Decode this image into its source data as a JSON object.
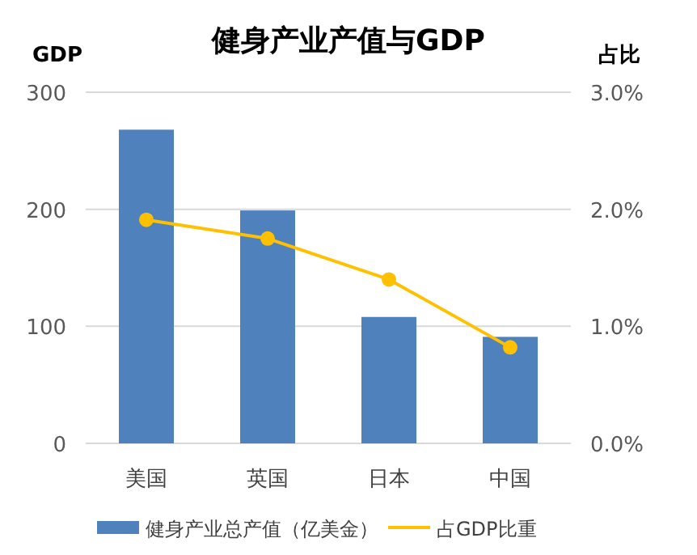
{
  "chart_data": {
    "type": "bar",
    "title": "健身产业产值与GDP",
    "ylabel": "GDP",
    "y2label": "占比",
    "categories": [
      "美国",
      "英国",
      "日本",
      "中国"
    ],
    "series": [
      {
        "name": "健身产业总产值（亿美金）",
        "color": "#4f81bd",
        "values": [
          268,
          199,
          108,
          91
        ]
      },
      {
        "name": "占GDP比重",
        "type": "line",
        "axis": "y2",
        "color": "#ffc000",
        "marker": "circle",
        "values": [
          1.91,
          1.75,
          1.4,
          0.82
        ]
      }
    ],
    "ylim": [
      0,
      300
    ],
    "yticks": [
      0,
      100,
      200,
      300
    ],
    "y2lim": [
      0,
      3
    ],
    "y2ticks": [
      {
        "value": 0,
        "label": "0.0%"
      },
      {
        "value": 1,
        "label": "1.0%"
      },
      {
        "value": 2,
        "label": "2.0%"
      },
      {
        "value": 3,
        "label": "3.0%"
      }
    ],
    "grid": "y",
    "legend": "bottom"
  }
}
